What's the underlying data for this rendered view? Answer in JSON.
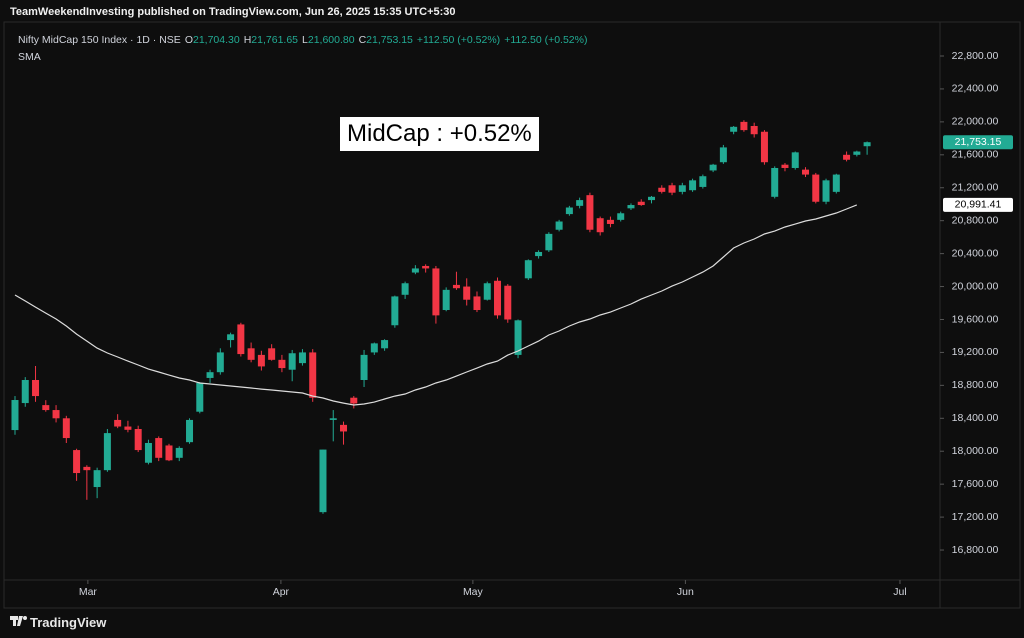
{
  "header": "TeamWeekendInvesting published on TradingView.com, Jun 26, 2025 15:35 UTC+5:30",
  "footer": "TradingView",
  "chart_data": {
    "type": "candlestick",
    "symbol": "Nifty MidCap 150 Index · 1D · NSE",
    "ohlc_legend": [
      {
        "key": "O",
        "value": "21,704.30"
      },
      {
        "key": "H",
        "value": "21,761.65"
      },
      {
        "key": "L",
        "value": "21,600.80"
      },
      {
        "key": "C",
        "value": "21,753.15"
      }
    ],
    "changes": [
      "+112.50 (+0.52%)",
      "+112.50 (+0.52%)"
    ],
    "annotation": "MidCap : +0.52%",
    "up_color": "#22ab94",
    "down_color": "#f23645",
    "open": [
      18257,
      18585,
      18865,
      18560,
      18500,
      18400,
      18014,
      17810,
      17565,
      17770,
      18380,
      18300,
      18270,
      17860,
      18160,
      18070,
      17920,
      18110,
      18480,
      18890,
      18960,
      19350,
      19540,
      19250,
      19170,
      19250,
      19110,
      18990,
      19070,
      19200,
      17260,
      18380,
      18320,
      18650,
      18865,
      19200,
      19250,
      19530,
      19900,
      20170,
      20250,
      20220,
      19715,
      20020,
      20000,
      19880,
      19840,
      20070,
      20010,
      19170,
      20100,
      20370,
      20440,
      20690,
      20880,
      20980,
      21110,
      20830,
      20810,
      20810,
      20950,
      21030,
      21050,
      21200,
      21230,
      21150,
      21170,
      21210,
      21410,
      21510,
      21880,
      22000,
      21950,
      21880,
      21090,
      21480,
      21440,
      21420,
      21360,
      21030,
      21150,
      21600,
      21600,
      21704.3
    ],
    "high": [
      18670,
      18900,
      19035,
      18620,
      18560,
      18430,
      18030,
      17830,
      17800,
      18270,
      18450,
      18370,
      18310,
      18140,
      18180,
      18090,
      18060,
      18400,
      18840,
      18990,
      19250,
      19440,
      19560,
      19320,
      19220,
      19300,
      19170,
      19230,
      19240,
      19240,
      18020,
      18500,
      18360,
      18670,
      19230,
      19320,
      19360,
      19890,
      20060,
      20260,
      20270,
      20250,
      19990,
      20180,
      20100,
      19940,
      20060,
      20110,
      20030,
      19600,
      20330,
      20440,
      20660,
      20810,
      20980,
      21080,
      21140,
      20850,
      20850,
      20910,
      21010,
      21060,
      21100,
      21230,
      21260,
      21260,
      21310,
      21360,
      21490,
      21720,
      21950,
      22020,
      21990,
      21900,
      21460,
      21500,
      21640,
      21450,
      21380,
      21310,
      21370,
      21640,
      21650,
      21761.65
    ],
    "low": [
      18200,
      18540,
      18600,
      18480,
      18350,
      18100,
      17640,
      17410,
      17430,
      17750,
      18280,
      18230,
      17990,
      17840,
      17880,
      17880,
      17880,
      18090,
      18460,
      18830,
      18930,
      19260,
      19150,
      19080,
      18980,
      19100,
      18960,
      18850,
      19040,
      18600,
      17240,
      18120,
      18080,
      18520,
      18780,
      19170,
      19220,
      19500,
      19850,
      20150,
      20170,
      19550,
      19700,
      19960,
      19770,
      19690,
      19830,
      19610,
      19560,
      19130,
      20080,
      20340,
      20420,
      20670,
      20860,
      20950,
      20660,
      20620,
      20720,
      20790,
      20930,
      20980,
      21010,
      21130,
      21110,
      21120,
      21150,
      21190,
      21390,
      21490,
      21850,
      21880,
      21810,
      21480,
      21070,
      21400,
      21420,
      21330,
      21010,
      21000,
      21130,
      21520,
      21580,
      21600.8
    ],
    "close": [
      18622,
      18865,
      18670,
      18500,
      18400,
      18160,
      17735,
      17770,
      17770,
      18220,
      18300,
      18260,
      18014,
      18100,
      17920,
      17890,
      18040,
      18380,
      18830,
      18960,
      19200,
      19420,
      19180,
      19110,
      19030,
      19110,
      19010,
      19190,
      19200,
      18650,
      18020,
      18400,
      18240,
      18580,
      19170,
      19310,
      19350,
      19880,
      20040,
      20220,
      20220,
      19650,
      19960,
      19980,
      19840,
      19715,
      20040,
      19650,
      19600,
      19590,
      20320,
      20420,
      20640,
      20790,
      20960,
      21050,
      20690,
      20660,
      20760,
      20890,
      20990,
      20990,
      21090,
      21150,
      21140,
      21230,
      21290,
      21340,
      21480,
      21690,
      21940,
      21900,
      21850,
      21510,
      21440,
      21440,
      21630,
      21360,
      21030,
      21290,
      21360,
      21540,
      21640,
      21753.15
    ],
    "sma": {
      "name": "SMA",
      "color": "#dcdcdc",
      "values": [
        19897,
        19824,
        19751,
        19678,
        19606,
        19521,
        19423,
        19338,
        19253,
        19193,
        19144,
        19095,
        19047,
        18998,
        18962,
        18925,
        18889,
        18865,
        18828,
        18816,
        18804,
        18792,
        18780,
        18768,
        18755,
        18743,
        18731,
        18719,
        18707,
        18670,
        18646,
        18610,
        18585,
        18561,
        18573,
        18597,
        18634,
        18670,
        18695,
        18743,
        18780,
        18828,
        18865,
        18913,
        18962,
        19010,
        19059,
        19095,
        19168,
        19217,
        19278,
        19338,
        19411,
        19460,
        19521,
        19569,
        19606,
        19654,
        19690,
        19739,
        19788,
        19848,
        19897,
        19946,
        20006,
        20055,
        20116,
        20176,
        20249,
        20359,
        20468,
        20529,
        20577,
        20638,
        20674,
        20723,
        20759,
        20796,
        20820,
        20857,
        20893,
        20942,
        20991.41
      ]
    },
    "last_price_label": "21,753.15",
    "sma_last_label": "20,991.41",
    "ylim": [
      16436,
      23213
    ],
    "yticks": [
      {
        "value": 16800,
        "label": "16,800.00"
      },
      {
        "value": 17200,
        "label": "17,200.00"
      },
      {
        "value": 17600,
        "label": "17,600.00"
      },
      {
        "value": 18000,
        "label": "18,000.00"
      },
      {
        "value": 18400,
        "label": "18,400.00"
      },
      {
        "value": 18800,
        "label": "18,800.00"
      },
      {
        "value": 19200,
        "label": "19,200.00"
      },
      {
        "value": 19600,
        "label": "19,600.00"
      },
      {
        "value": 20000,
        "label": "20,000.00"
      },
      {
        "value": 20400,
        "label": "20,400.00"
      },
      {
        "value": 20800,
        "label": "20,800.00"
      },
      {
        "value": 21200,
        "label": "21,200.00"
      },
      {
        "value": 21600,
        "label": "21,600.00"
      },
      {
        "value": 22000,
        "label": "22,000.00"
      },
      {
        "value": 22400,
        "label": "22,400.00"
      },
      {
        "value": 22800,
        "label": "22,800.00"
      }
    ],
    "xlim": [
      -1.46,
      90.1
    ],
    "xticks": [
      {
        "value": 7.1,
        "label": "Mar"
      },
      {
        "value": 25.9,
        "label": "Apr"
      },
      {
        "value": 44.6,
        "label": "May"
      },
      {
        "value": 65.3,
        "label": "Jun"
      },
      {
        "value": 86.2,
        "label": "Jul"
      }
    ],
    "grid": false
  }
}
